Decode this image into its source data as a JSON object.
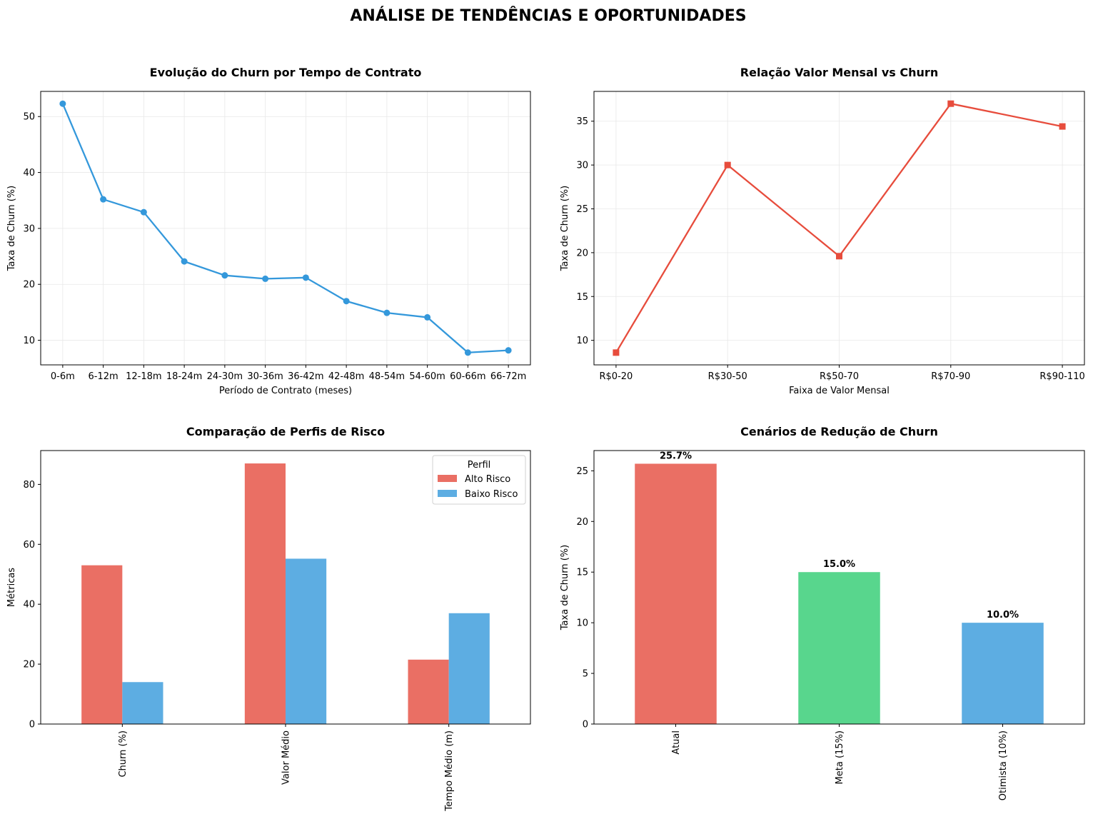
{
  "figure": {
    "suptitle": "ANÁLISE DE TENDÊNCIAS E OPORTUNIDADES"
  },
  "colors": {
    "line1": "#3498db",
    "line2": "#e74c3c",
    "alto": "#ea6f64",
    "baixo": "#5dade2",
    "meta": "#58d68d",
    "grid": "#e8e8e8"
  },
  "chart_data": [
    {
      "type": "line",
      "title": "Evolução do Churn por Tempo de Contrato",
      "xlabel": "Período de Contrato (meses)",
      "ylabel": "Taxa de Churn (%)",
      "categories": [
        "0-6m",
        "6-12m",
        "12-18m",
        "18-24m",
        "24-30m",
        "30-36m",
        "36-42m",
        "42-48m",
        "48-54m",
        "54-60m",
        "60-66m",
        "66-72m"
      ],
      "values": [
        52.3,
        35.2,
        32.9,
        24.1,
        21.6,
        21.0,
        21.2,
        17.0,
        14.9,
        14.1,
        7.8,
        8.2
      ],
      "ylim": [
        5.6,
        54.5
      ],
      "yticks": [
        10,
        20,
        30,
        40,
        50
      ],
      "marker": "circle",
      "grid": true
    },
    {
      "type": "line",
      "title": "Relação Valor Mensal vs Churn",
      "xlabel": "Faixa de Valor Mensal",
      "ylabel": "Taxa de Churn (%)",
      "categories": [
        "R$0-20",
        "R$30-50",
        "R$50-70",
        "R$70-90",
        "R$90-110"
      ],
      "values": [
        8.6,
        30.0,
        19.6,
        37.0,
        34.4
      ],
      "ylim": [
        7.2,
        38.4
      ],
      "yticks": [
        10,
        15,
        20,
        25,
        30,
        35
      ],
      "marker": "square",
      "grid": true
    },
    {
      "type": "bar",
      "title": "Comparação de Perfis de Risco",
      "xlabel": "",
      "ylabel": "Métricas",
      "categories": [
        "Churn (%)",
        "Valor Médio",
        "Tempo Médio (m)"
      ],
      "series": [
        {
          "name": "Alto Risco",
          "values": [
            53.0,
            87.0,
            21.5
          ]
        },
        {
          "name": "Baixo Risco",
          "values": [
            14.0,
            55.2,
            37.0
          ]
        }
      ],
      "ylim": [
        0,
        91.3
      ],
      "yticks": [
        0,
        20,
        40,
        60,
        80
      ],
      "legend": {
        "title": "Perfil",
        "placement": "top-right"
      },
      "grid": false
    },
    {
      "type": "bar",
      "title": "Cenários de Redução de Churn",
      "xlabel": "",
      "ylabel": "Taxa de Churn (%)",
      "categories": [
        "Atual",
        "Meta (15%)",
        "Otimista (10%)"
      ],
      "values": [
        25.7,
        15.0,
        10.0
      ],
      "data_labels": [
        "25.7%",
        "15.0%",
        "10.0%"
      ],
      "ylim": [
        0,
        27.0
      ],
      "yticks": [
        0,
        5,
        10,
        15,
        20,
        25
      ],
      "grid": false
    }
  ]
}
